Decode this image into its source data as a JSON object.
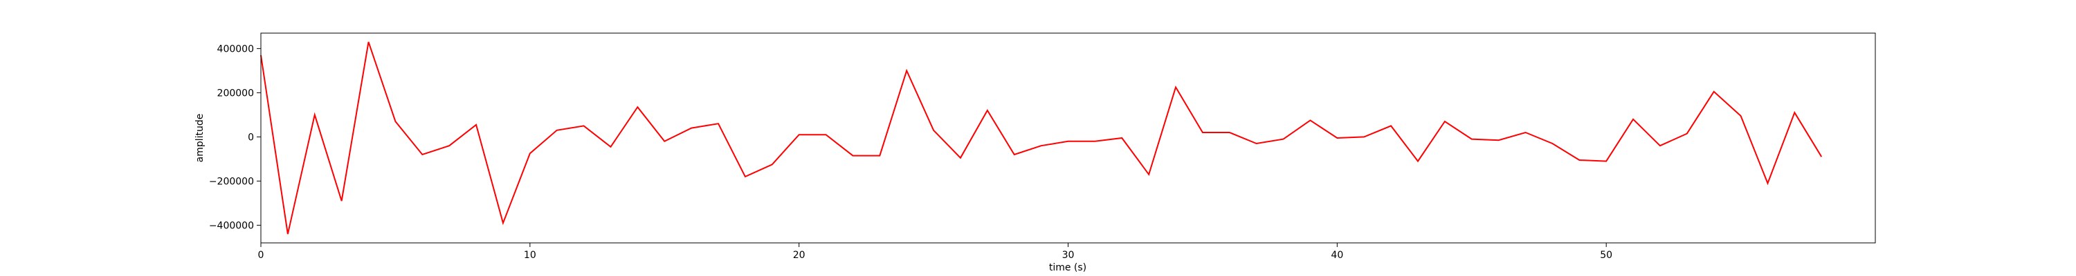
{
  "chart_data": {
    "type": "line",
    "title": "",
    "xlabel": "time (s)",
    "ylabel": "amplitude",
    "xlim": [
      0,
      60
    ],
    "ylim": [
      -480000,
      470000
    ],
    "xticks": [
      0,
      10,
      20,
      30,
      40,
      50
    ],
    "yticks": [
      -400000,
      -200000,
      0,
      200000,
      400000
    ],
    "grid": false,
    "series": [
      {
        "color": "#ff0000",
        "x": [
          0,
          1,
          2,
          3,
          4,
          5,
          6,
          7,
          8,
          9,
          10,
          11,
          12,
          13,
          14,
          15,
          16,
          17,
          18,
          19,
          20,
          21,
          22,
          23,
          24,
          25,
          26,
          27,
          28,
          29,
          30,
          31,
          32,
          33,
          34,
          35,
          36,
          37,
          38,
          39,
          40,
          41,
          42,
          43,
          44,
          45,
          46,
          47,
          48,
          49,
          50,
          51,
          52,
          53,
          54,
          55,
          56,
          57,
          58
        ],
        "y": [
          370000,
          -440000,
          100000,
          -290000,
          430000,
          70000,
          -80000,
          -40000,
          55000,
          -390000,
          -75000,
          30000,
          50000,
          -45000,
          135000,
          -20000,
          40000,
          60000,
          -180000,
          -125000,
          10000,
          10000,
          -85000,
          -85000,
          300000,
          30000,
          -95000,
          120000,
          -80000,
          -40000,
          -20000,
          -20000,
          -5000,
          -170000,
          225000,
          20000,
          20000,
          -30000,
          -10000,
          75000,
          -5000,
          0,
          50000,
          -110000,
          70000,
          -10000,
          -15000,
          20000,
          -30000,
          -105000,
          -110000,
          80000,
          -40000,
          15000,
          205000,
          95000,
          -210000,
          110000,
          -90000
        ]
      }
    ]
  }
}
